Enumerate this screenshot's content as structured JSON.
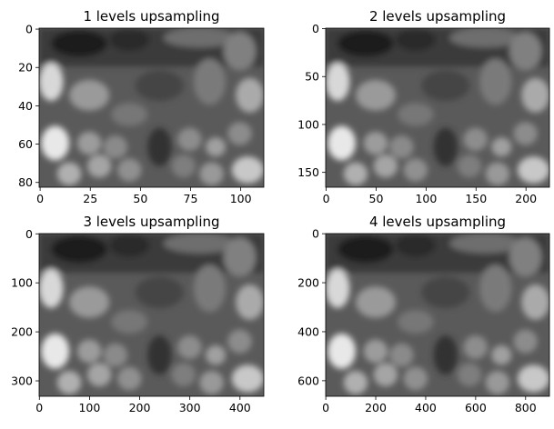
{
  "chart_data": [
    {
      "type": "image",
      "title": "1 levels upsampling",
      "xlim": [
        -0.5,
        111.5
      ],
      "ylim": [
        82.5,
        -0.5
      ],
      "xticks": [
        0,
        25,
        50,
        75,
        100
      ],
      "yticks": [
        0,
        20,
        40,
        60,
        80
      ]
    },
    {
      "type": "image",
      "title": "2 levels upsampling",
      "xlim": [
        -0.5,
        223.5
      ],
      "ylim": [
        165.5,
        -0.5
      ],
      "xticks": [
        0,
        50,
        100,
        150,
        200
      ],
      "yticks": [
        0,
        50,
        100,
        150
      ]
    },
    {
      "type": "image",
      "title": "3 levels upsampling",
      "xlim": [
        -0.5,
        447.5
      ],
      "ylim": [
        331.5,
        -0.5
      ],
      "xticks": [
        0,
        100,
        200,
        300,
        400
      ],
      "yticks": [
        0,
        100,
        200,
        300
      ]
    },
    {
      "type": "image",
      "title": "4 levels upsampling",
      "xlim": [
        -0.5,
        895.5
      ],
      "ylim": [
        663.5,
        -0.5
      ],
      "xticks": [
        0,
        200,
        400,
        600,
        800
      ],
      "yticks": [
        0,
        200,
        400,
        600
      ]
    }
  ]
}
